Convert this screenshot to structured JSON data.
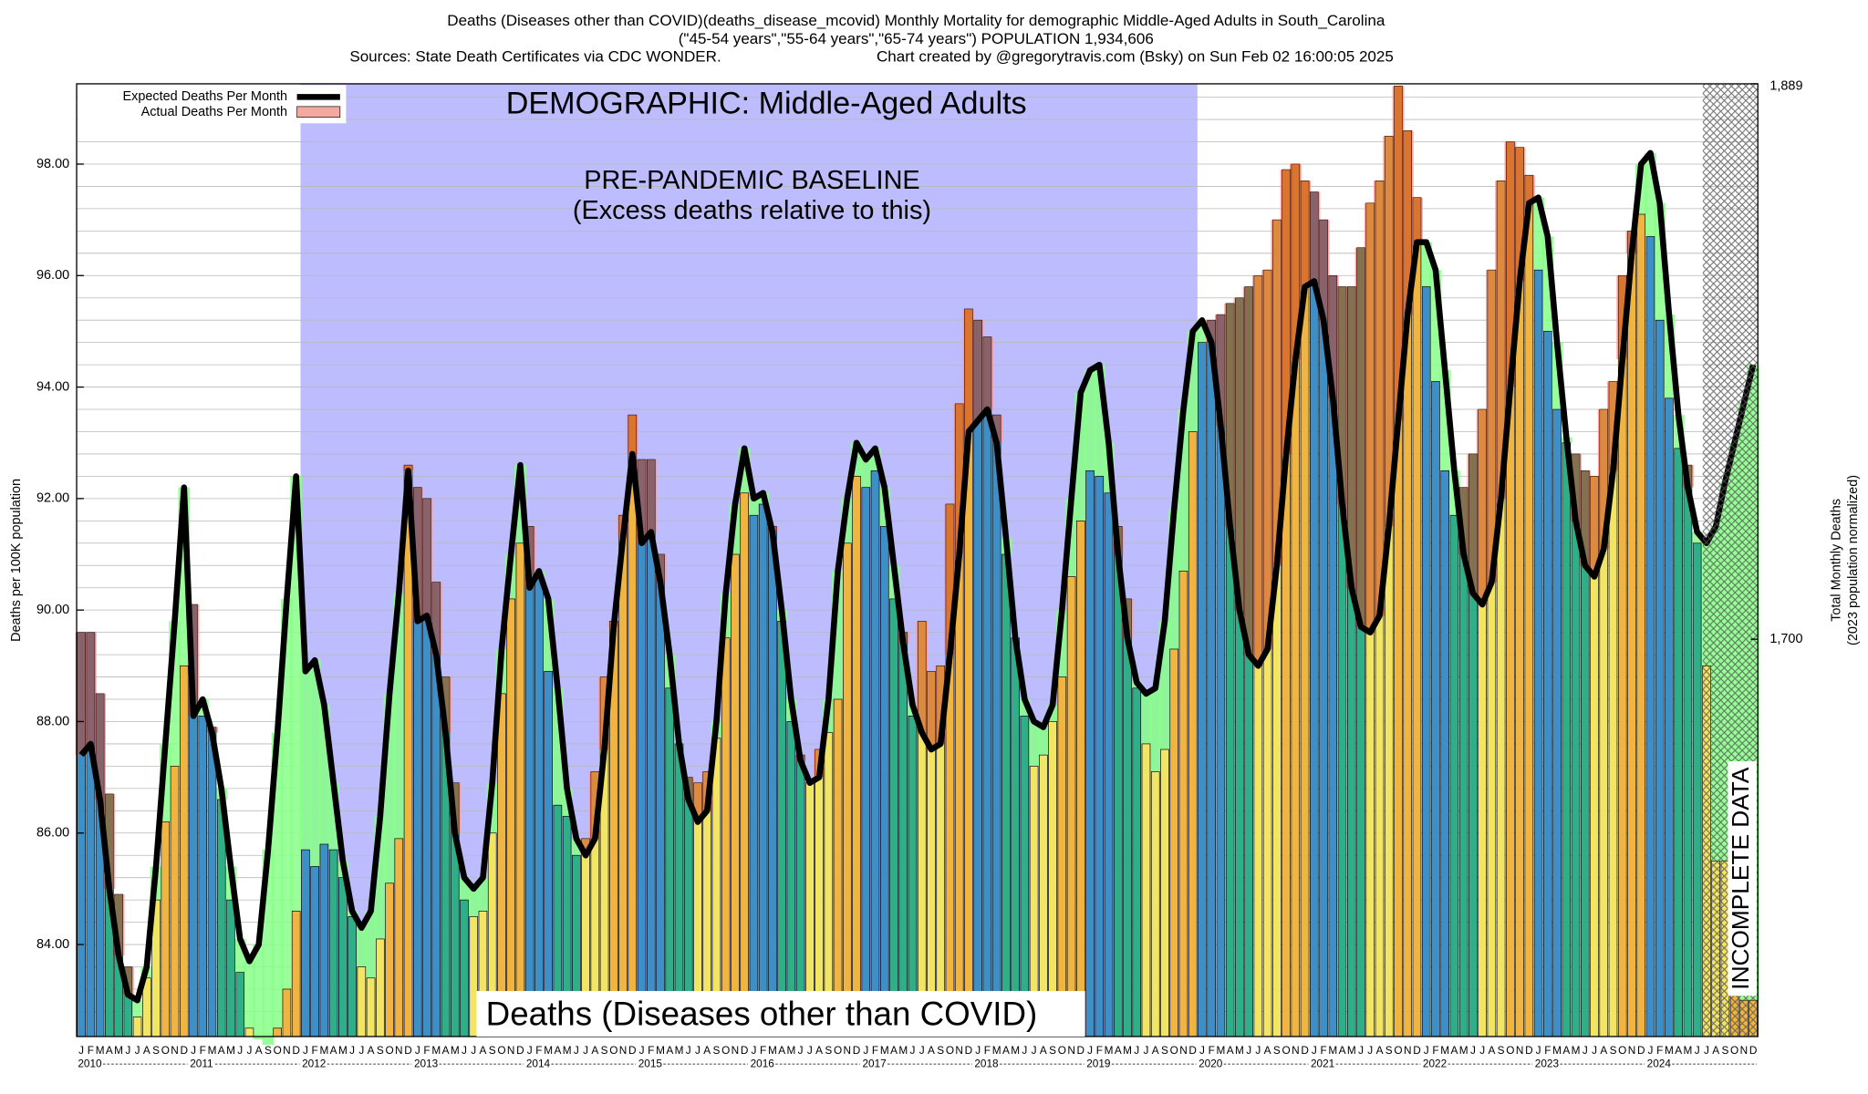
{
  "chart_data": {
    "type": "bar",
    "title": "Deaths (Diseases other than COVID)(deaths_disease_mcovid) Monthly Mortality for demographic Middle-Aged Adults in South_Carolina",
    "subtitle": "(\"45-54 years\",\"55-64 years\",\"65-74 years\") POPULATION 1,934,606",
    "sources": "Sources: State Death Certificates via CDC WONDER.",
    "credit": "Chart created by @gregorytravis.com (Bsky) on Sun Feb 02 16:00:05 2025",
    "annotations": {
      "demographic": "DEMOGRAPHIC: Middle-Aged Adults",
      "baseline": "PRE-PANDEMIC BASELINE",
      "baseline_note": "(Excess deaths relative to this)",
      "measure": "Deaths (Diseases other than COVID)",
      "incomplete": "INCOMPLETE DATA"
    },
    "ylabel": "Deaths per 100K population",
    "y2label": "Total Monthly Deaths",
    "y2label_note": "(2023 population normalized)",
    "legend": "top-left",
    "grid": true,
    "ylim": [
      82.35,
      99.44
    ],
    "yticks": [
      {
        "value": 84,
        "label": "84.00"
      },
      {
        "value": 86,
        "label": "86.00"
      },
      {
        "value": 88,
        "label": "88.00"
      },
      {
        "value": 90,
        "label": "90.00"
      },
      {
        "value": 92,
        "label": "92.00"
      },
      {
        "value": 94,
        "label": "94.00"
      },
      {
        "value": 96,
        "label": "96.00"
      },
      {
        "value": 98,
        "label": "98.00"
      }
    ],
    "yticks_minor": [
      82.4,
      82.8,
      83.2,
      83.6,
      84.0,
      84.4,
      84.8,
      85.2,
      85.6,
      86.0,
      86.4,
      86.8,
      87.2,
      87.6,
      88.0,
      88.4,
      88.8,
      89.2,
      89.6,
      90.0,
      90.4,
      90.8,
      91.2,
      91.6,
      92.0,
      92.4,
      92.8,
      93.2,
      93.6,
      94.0,
      94.4,
      94.8,
      95.2,
      95.6,
      96.0,
      96.4,
      96.8,
      97.2,
      97.6,
      98.0,
      98.4,
      98.8,
      99.2
    ],
    "y2lim": [
      1564.8,
      1889
    ],
    "y2ticks": [
      {
        "value": 1700,
        "label": "1,700"
      },
      {
        "value": 1889,
        "label": "1,889"
      }
    ],
    "month_colors": [
      "#3d8fc6",
      "#3d8fc6",
      "#3d8fc6",
      "#2fae88",
      "#2fae88",
      "#2fae88",
      "#f3e564",
      "#f3e564",
      "#f3e564",
      "#f0b540",
      "#f0b540",
      "#f0b540"
    ],
    "year_labels": [
      "2010",
      "2011",
      "2012",
      "2013",
      "2014",
      "2015",
      "2016",
      "2017",
      "2018",
      "2019",
      "2020",
      "2021",
      "2022",
      "2023",
      "2024"
    ],
    "categories": [
      "J",
      "F",
      "M",
      "A",
      "M",
      "J",
      "J",
      "A",
      "S",
      "O",
      "N",
      "D",
      "J",
      "F",
      "M",
      "A",
      "M",
      "J",
      "J",
      "A",
      "S",
      "O",
      "N",
      "D",
      "J",
      "F",
      "M",
      "A",
      "M",
      "J",
      "J",
      "A",
      "S",
      "O",
      "N",
      "D",
      "J",
      "F",
      "M",
      "A",
      "M",
      "J",
      "J",
      "A",
      "S",
      "O",
      "N",
      "D",
      "J",
      "F",
      "M",
      "A",
      "M",
      "J",
      "J",
      "A",
      "S",
      "O",
      "N",
      "D",
      "J",
      "F",
      "M",
      "A",
      "M",
      "J",
      "J",
      "A",
      "S",
      "O",
      "N",
      "D",
      "J",
      "F",
      "M",
      "A",
      "M",
      "J",
      "J",
      "A",
      "S",
      "O",
      "N",
      "D",
      "J",
      "F",
      "M",
      "A",
      "M",
      "J",
      "J",
      "A",
      "S",
      "O",
      "N",
      "D",
      "J",
      "F",
      "M",
      "A",
      "M",
      "J",
      "J",
      "A",
      "S",
      "O",
      "N",
      "D",
      "J",
      "F",
      "M",
      "A",
      "M",
      "J",
      "J",
      "A",
      "S",
      "O",
      "N",
      "D",
      "J",
      "F",
      "M",
      "A",
      "M",
      "J",
      "J",
      "A",
      "S",
      "O",
      "N",
      "D",
      "J",
      "F",
      "M",
      "A",
      "M",
      "J",
      "J",
      "A",
      "S",
      "O",
      "N",
      "D",
      "J",
      "F",
      "M",
      "A",
      "M",
      "J",
      "J",
      "A",
      "S",
      "O",
      "N",
      "D",
      "J",
      "F",
      "M",
      "A",
      "M",
      "J",
      "J",
      "A",
      "S",
      "O",
      "N",
      "D",
      "J",
      "F",
      "M",
      "A",
      "M",
      "J",
      "J",
      "A",
      "S",
      "O",
      "N",
      "D"
    ],
    "series": [
      {
        "name": "Actual Deaths Per Month",
        "color": "#f4a8a0",
        "values": [
          89.6,
          89.6,
          88.5,
          86.7,
          84.9,
          83.6,
          82.7,
          83.4,
          84.8,
          86.2,
          87.2,
          89.0,
          90.1,
          88.1,
          87.9,
          86.6,
          84.8,
          83.5,
          82.5,
          82.3,
          82.2,
          82.5,
          83.2,
          84.6,
          85.7,
          85.4,
          85.8,
          85.7,
          85.2,
          84.5,
          83.6,
          83.4,
          84.1,
          85.1,
          85.9,
          92.6,
          92.2,
          92.0,
          90.5,
          88.8,
          86.9,
          84.8,
          84.5,
          84.6,
          86.0,
          88.5,
          90.2,
          91.2,
          91.5,
          90.6,
          88.9,
          86.5,
          86.3,
          85.6,
          85.9,
          87.1,
          88.8,
          89.8,
          91.7,
          93.5,
          92.7,
          92.7,
          91.0,
          88.6,
          87.6,
          87.0,
          86.9,
          87.1,
          87.7,
          89.5,
          91.0,
          92.1,
          91.7,
          91.9,
          91.5,
          89.8,
          88.0,
          87.4,
          86.9,
          87.5,
          87.8,
          88.4,
          91.2,
          92.4,
          92.2,
          92.5,
          91.5,
          90.2,
          89.6,
          88.1,
          89.8,
          88.9,
          89.0,
          91.9,
          93.7,
          95.4,
          95.2,
          94.9,
          93.5,
          91.0,
          89.5,
          88.1,
          87.2,
          87.4,
          88.0,
          88.8,
          90.6,
          91.6,
          92.5,
          92.4,
          92.1,
          91.5,
          90.2,
          88.6,
          87.6,
          87.1,
          87.5,
          89.3,
          90.7,
          93.2,
          94.8,
          95.2,
          95.3,
          95.5,
          95.6,
          95.8,
          96.0,
          96.1,
          97.0,
          97.9,
          98.0,
          97.7,
          97.5,
          97.0,
          96.0,
          95.8,
          95.8,
          96.5,
          97.3,
          97.7,
          98.5,
          99.4,
          98.6,
          97.4,
          95.8,
          94.1,
          92.5,
          91.7,
          92.2,
          92.8,
          93.6,
          96.1,
          97.7,
          98.4,
          98.3,
          97.8,
          96.1,
          95.0,
          93.6,
          93.0,
          92.8,
          92.5,
          92.4,
          93.6,
          94.1,
          96.0,
          96.8,
          97.1,
          96.7,
          95.2,
          93.8,
          92.9,
          92.6,
          91.2,
          89.0,
          85.5,
          85.5,
          83.5,
          83.0,
          83.0
        ]
      },
      {
        "name": "Expected Deaths Per Month",
        "color": "#000000",
        "values": [
          87.4,
          87.6,
          86.6,
          85.0,
          83.8,
          83.1,
          83.0,
          83.6,
          85.4,
          87.6,
          89.8,
          92.2,
          88.1,
          88.4,
          87.8,
          86.8,
          85.4,
          84.1,
          83.7,
          84.0,
          85.7,
          87.8,
          90.2,
          92.4,
          88.9,
          89.1,
          88.3,
          86.9,
          85.5,
          84.6,
          84.3,
          84.6,
          86.3,
          88.5,
          90.3,
          92.5,
          89.8,
          89.9,
          89.2,
          87.8,
          86.0,
          85.2,
          85.0,
          85.2,
          86.9,
          89.3,
          91.0,
          92.6,
          90.4,
          90.7,
          90.2,
          88.6,
          86.8,
          85.9,
          85.6,
          85.9,
          87.5,
          89.7,
          91.3,
          92.8,
          91.2,
          91.4,
          90.5,
          89.2,
          87.6,
          86.6,
          86.2,
          86.4,
          88.0,
          90.3,
          91.9,
          92.9,
          92.0,
          92.1,
          91.4,
          90.0,
          88.4,
          87.3,
          86.9,
          87.0,
          88.4,
          90.7,
          92.0,
          93.0,
          92.7,
          92.9,
          92.2,
          90.8,
          89.4,
          88.3,
          87.8,
          87.5,
          87.6,
          89.2,
          91.0,
          93.2,
          93.4,
          93.6,
          93.0,
          91.3,
          89.5,
          88.4,
          88.0,
          87.9,
          88.3,
          90.0,
          92.0,
          93.9,
          94.3,
          94.4,
          93.0,
          91.0,
          89.5,
          88.7,
          88.5,
          88.6,
          89.8,
          91.8,
          93.6,
          95.0,
          95.2,
          94.8,
          93.3,
          91.5,
          90.0,
          89.2,
          89.0,
          89.3,
          90.8,
          92.8,
          94.5,
          95.8,
          95.9,
          95.2,
          93.8,
          91.9,
          90.4,
          89.7,
          89.6,
          89.9,
          91.5,
          93.4,
          95.3,
          96.6,
          96.6,
          96.1,
          94.3,
          92.5,
          91.0,
          90.3,
          90.1,
          90.5,
          92.0,
          94.0,
          95.9,
          97.3,
          97.4,
          96.7,
          94.8,
          93.1,
          91.6,
          90.8,
          90.6,
          91.1,
          92.5,
          94.5,
          96.4,
          98.0,
          98.2,
          97.3,
          95.3,
          93.5,
          92.2,
          91.4,
          91.2,
          91.5,
          92.3,
          93.0,
          93.7,
          94.4
        ]
      }
    ]
  }
}
